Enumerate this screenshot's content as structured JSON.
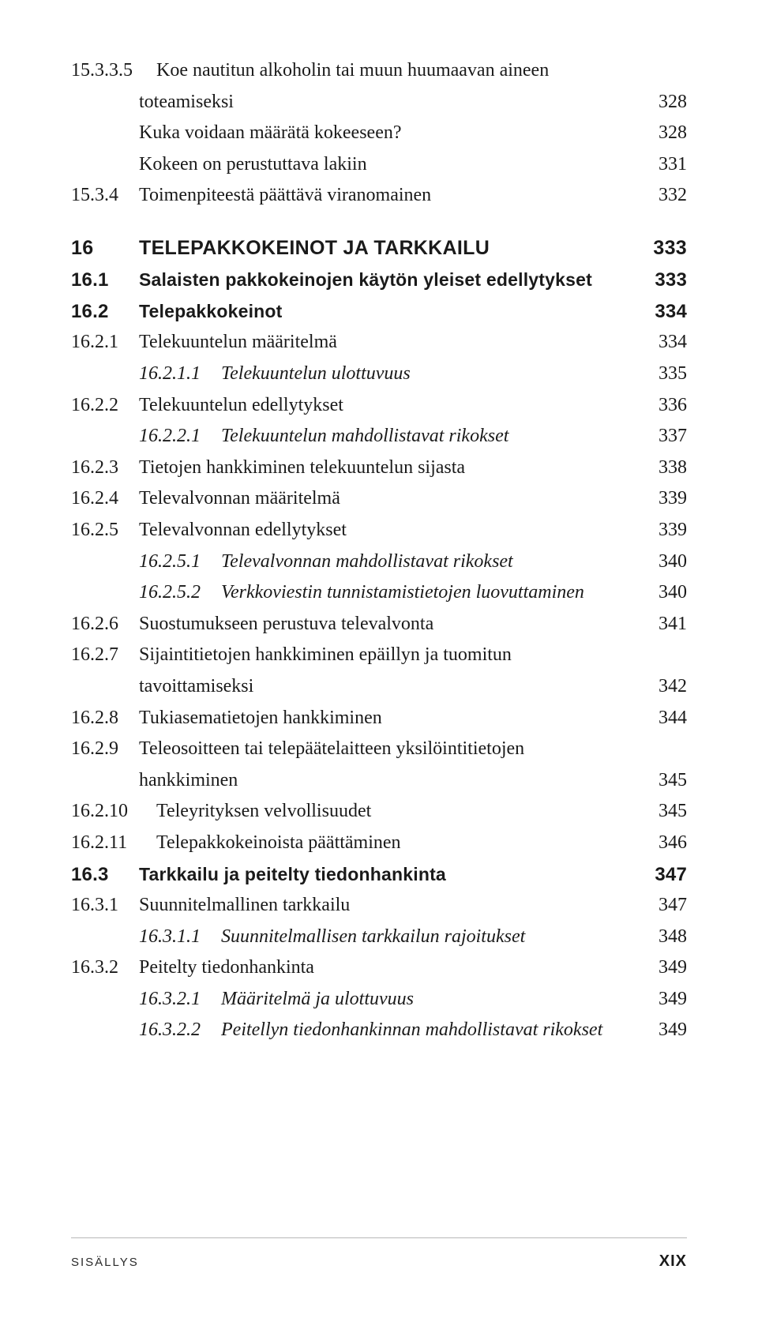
{
  "entries": [
    {
      "num": "15.3.3.5",
      "text": "Koe nautitun alkoholin tai muun huumaavan aineen",
      "page": "",
      "level": 0,
      "style": "normal",
      "wclass": "w2"
    },
    {
      "num": "",
      "text": "toteamiseksi",
      "page": "328",
      "level": 2,
      "style": "normal"
    },
    {
      "num": "",
      "text": "Kuka voidaan määrätä kokeeseen?",
      "page": "328",
      "level": 2,
      "style": "normal"
    },
    {
      "num": "",
      "text": "Kokeen on perustuttava lakiin",
      "page": "331",
      "level": 2,
      "style": "normal"
    },
    {
      "num": "15.3.4",
      "text": "Toimenpiteestä päättävä viranomainen",
      "page": "332",
      "level": 0,
      "style": "normal",
      "wclass": "w1"
    },
    {
      "gap": true
    },
    {
      "num": "16",
      "text": "TELEPAKKOKEINOT JA TARKKAILU",
      "page": "333",
      "level": 0,
      "style": "chapter",
      "wclass": "w1"
    },
    {
      "num": "16.1",
      "text": "Salaisten pakkokeinojen käytön yleiset edellytykset",
      "page": "333",
      "level": 0,
      "style": "bold",
      "wclass": "w1"
    },
    {
      "num": "16.2",
      "text": "Telepakkokeinot",
      "page": "334",
      "level": 0,
      "style": "bold",
      "wclass": "w1"
    },
    {
      "num": "16.2.1",
      "text": "Telekuuntelun määritelmä",
      "page": "334",
      "level": 0,
      "style": "normal",
      "wclass": "w1"
    },
    {
      "num": "16.2.1.1",
      "text": "Telekuuntelun ulottuvuus",
      "page": "335",
      "level": 2,
      "style": "italic",
      "wclass": "w3"
    },
    {
      "num": "16.2.2",
      "text": "Telekuuntelun edellytykset",
      "page": "336",
      "level": 0,
      "style": "normal",
      "wclass": "w1"
    },
    {
      "num": "16.2.2.1",
      "text": "Telekuuntelun mahdollistavat rikokset",
      "page": "337",
      "level": 2,
      "style": "italic",
      "wclass": "w3"
    },
    {
      "num": "16.2.3",
      "text": "Tietojen hankkiminen telekuuntelun sijasta",
      "page": "338",
      "level": 0,
      "style": "normal",
      "wclass": "w1"
    },
    {
      "num": "16.2.4",
      "text": "Televalvonnan määritelmä",
      "page": "339",
      "level": 0,
      "style": "normal",
      "wclass": "w1"
    },
    {
      "num": "16.2.5",
      "text": "Televalvonnan edellytykset",
      "page": "339",
      "level": 0,
      "style": "normal",
      "wclass": "w1"
    },
    {
      "num": "16.2.5.1",
      "text": "Televalvonnan mahdollistavat rikokset",
      "page": "340",
      "level": 2,
      "style": "italic",
      "wclass": "w3"
    },
    {
      "num": "16.2.5.2",
      "text": "Verkkoviestin tunnistamistietojen luovuttaminen",
      "page": "340",
      "level": 2,
      "style": "italic",
      "wclass": "w3"
    },
    {
      "num": "16.2.6",
      "text": "Suostumukseen perustuva televalvonta",
      "page": "341",
      "level": 0,
      "style": "normal",
      "wclass": "w1"
    },
    {
      "num": "16.2.7",
      "text": "Sijaintitietojen hankkiminen epäillyn ja tuomitun",
      "page": "",
      "level": 0,
      "style": "normal",
      "wclass": "w1"
    },
    {
      "num": "",
      "text": "tavoittamiseksi",
      "page": "342",
      "level": 0,
      "style": "normal",
      "wclass": "w1",
      "continuation": true
    },
    {
      "num": "16.2.8",
      "text": "Tukiasematietojen hankkiminen",
      "page": "344",
      "level": 0,
      "style": "normal",
      "wclass": "w1"
    },
    {
      "num": "16.2.9",
      "text": "Teleosoitteen tai telepäätelaitteen yksilöintitietojen",
      "page": "",
      "level": 0,
      "style": "normal",
      "wclass": "w1"
    },
    {
      "num": "",
      "text": "hankkiminen",
      "page": "345",
      "level": 0,
      "style": "normal",
      "wclass": "w1",
      "continuation": true
    },
    {
      "num": "16.2.10",
      "text": "Teleyrityksen velvollisuudet",
      "page": "345",
      "level": 0,
      "style": "normal",
      "wclass": "w2"
    },
    {
      "num": "16.2.11",
      "text": "Telepakkokeinoista päättäminen",
      "page": "346",
      "level": 0,
      "style": "normal",
      "wclass": "w2"
    },
    {
      "num": "16.3",
      "text": "Tarkkailu ja peitelty tiedonhankinta",
      "page": "347",
      "level": 0,
      "style": "bold",
      "wclass": "w1"
    },
    {
      "num": "16.3.1",
      "text": "Suunnitelmallinen tarkkailu",
      "page": "347",
      "level": 0,
      "style": "normal",
      "wclass": "w1"
    },
    {
      "num": "16.3.1.1",
      "text": "Suunnitelmallisen tarkkailun rajoitukset",
      "page": "348",
      "level": 2,
      "style": "italic",
      "wclass": "w3"
    },
    {
      "num": "16.3.2",
      "text": "Peitelty tiedonhankinta",
      "page": "349",
      "level": 0,
      "style": "normal",
      "wclass": "w1"
    },
    {
      "num": "16.3.2.1",
      "text": "Määritelmä ja ulottuvuus",
      "page": "349",
      "level": 2,
      "style": "italic",
      "wclass": "w3"
    },
    {
      "num": "16.3.2.2",
      "text": "Peitellyn tiedonhankinnan mahdollistavat rikokset",
      "page": "349",
      "level": 2,
      "style": "italic",
      "wclass": "w3"
    }
  ],
  "footer": {
    "left": "SISÄLLYS",
    "right": "XIX"
  }
}
